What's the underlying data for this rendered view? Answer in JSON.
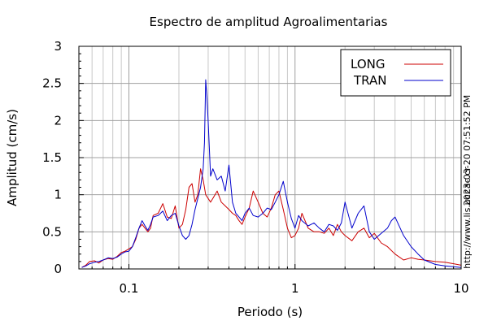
{
  "chart_data": {
    "type": "line",
    "title": "Espectro de amplitud Agroalimentarias",
    "xlabel": "Periodo (s)",
    "ylabel": "Amplitud (cm/s)",
    "x_scale": "log",
    "xlim": [
      0.05,
      10
    ],
    "ylim": [
      0,
      3
    ],
    "grid": true,
    "legend_position": "top-right",
    "x_ticks": [
      {
        "value": 0.1,
        "label": "0.1"
      },
      {
        "value": 1,
        "label": "1"
      },
      {
        "value": 10,
        "label": "10"
      }
    ],
    "y_ticks": [
      {
        "value": 0,
        "label": "0"
      },
      {
        "value": 0.5,
        "label": "0.5"
      },
      {
        "value": 1,
        "label": "1"
      },
      {
        "value": 1.5,
        "label": "1.5"
      },
      {
        "value": 2,
        "label": "2"
      },
      {
        "value": 2.5,
        "label": "2.5"
      },
      {
        "value": 3,
        "label": "3"
      }
    ],
    "series": [
      {
        "name": "LONG",
        "color": "#cc0000",
        "x": [
          0.052,
          0.055,
          0.058,
          0.062,
          0.066,
          0.07,
          0.075,
          0.08,
          0.085,
          0.09,
          0.095,
          0.1,
          0.105,
          0.11,
          0.115,
          0.12,
          0.125,
          0.13,
          0.135,
          0.14,
          0.15,
          0.16,
          0.17,
          0.18,
          0.19,
          0.2,
          0.21,
          0.22,
          0.23,
          0.24,
          0.25,
          0.26,
          0.27,
          0.28,
          0.29,
          0.3,
          0.31,
          0.32,
          0.34,
          0.36,
          0.38,
          0.4,
          0.42,
          0.44,
          0.46,
          0.48,
          0.5,
          0.53,
          0.56,
          0.6,
          0.64,
          0.68,
          0.72,
          0.76,
          0.8,
          0.85,
          0.9,
          0.95,
          1.0,
          1.05,
          1.1,
          1.2,
          1.3,
          1.4,
          1.5,
          1.6,
          1.7,
          1.8,
          1.9,
          2.0,
          2.2,
          2.4,
          2.6,
          2.8,
          3.0,
          3.3,
          3.6,
          4.0,
          4.5,
          5.0,
          5.5,
          6.0,
          7.0,
          8.0,
          9.0,
          10.0
        ],
        "values": [
          0.02,
          0.05,
          0.1,
          0.11,
          0.08,
          0.12,
          0.14,
          0.13,
          0.17,
          0.22,
          0.24,
          0.27,
          0.3,
          0.4,
          0.55,
          0.6,
          0.55,
          0.5,
          0.55,
          0.72,
          0.75,
          0.88,
          0.7,
          0.68,
          0.85,
          0.55,
          0.6,
          0.8,
          1.1,
          1.15,
          0.9,
          1.0,
          1.35,
          1.2,
          1.0,
          0.95,
          0.9,
          0.95,
          1.05,
          0.9,
          0.85,
          0.8,
          0.75,
          0.72,
          0.65,
          0.6,
          0.7,
          0.82,
          1.05,
          0.9,
          0.75,
          0.7,
          0.82,
          1.0,
          1.05,
          0.8,
          0.55,
          0.42,
          0.45,
          0.55,
          0.75,
          0.55,
          0.5,
          0.5,
          0.48,
          0.55,
          0.45,
          0.6,
          0.5,
          0.45,
          0.38,
          0.5,
          0.55,
          0.42,
          0.48,
          0.35,
          0.3,
          0.2,
          0.12,
          0.15,
          0.13,
          0.12,
          0.1,
          0.09,
          0.07,
          0.05
        ]
      },
      {
        "name": "TRAN",
        "color": "#0000cc",
        "x": [
          0.052,
          0.055,
          0.058,
          0.062,
          0.066,
          0.07,
          0.075,
          0.08,
          0.085,
          0.09,
          0.095,
          0.1,
          0.105,
          0.11,
          0.115,
          0.12,
          0.125,
          0.13,
          0.135,
          0.14,
          0.15,
          0.16,
          0.17,
          0.18,
          0.19,
          0.2,
          0.21,
          0.22,
          0.23,
          0.24,
          0.25,
          0.26,
          0.27,
          0.28,
          0.285,
          0.29,
          0.295,
          0.3,
          0.31,
          0.32,
          0.34,
          0.36,
          0.38,
          0.4,
          0.42,
          0.44,
          0.46,
          0.48,
          0.5,
          0.53,
          0.56,
          0.6,
          0.64,
          0.68,
          0.72,
          0.76,
          0.8,
          0.85,
          0.9,
          0.95,
          1.0,
          1.05,
          1.1,
          1.2,
          1.3,
          1.4,
          1.5,
          1.6,
          1.7,
          1.8,
          1.9,
          2.0,
          2.2,
          2.4,
          2.6,
          2.8,
          3.0,
          3.3,
          3.6,
          3.8,
          4.0,
          4.5,
          5.0,
          5.5,
          6.0,
          7.0,
          8.0,
          9.0,
          10.0
        ],
        "values": [
          0.02,
          0.04,
          0.07,
          0.09,
          0.1,
          0.12,
          0.15,
          0.14,
          0.16,
          0.2,
          0.23,
          0.24,
          0.3,
          0.42,
          0.55,
          0.65,
          0.58,
          0.52,
          0.6,
          0.7,
          0.72,
          0.78,
          0.65,
          0.72,
          0.75,
          0.58,
          0.45,
          0.4,
          0.45,
          0.6,
          0.8,
          0.95,
          1.1,
          1.35,
          1.7,
          2.55,
          2.3,
          2.0,
          1.25,
          1.35,
          1.2,
          1.25,
          1.05,
          1.4,
          0.9,
          0.75,
          0.7,
          0.65,
          0.75,
          0.82,
          0.72,
          0.7,
          0.75,
          0.82,
          0.8,
          0.9,
          1.0,
          1.18,
          0.9,
          0.68,
          0.55,
          0.72,
          0.65,
          0.58,
          0.62,
          0.55,
          0.5,
          0.6,
          0.58,
          0.52,
          0.62,
          0.9,
          0.55,
          0.75,
          0.85,
          0.5,
          0.4,
          0.48,
          0.55,
          0.65,
          0.7,
          0.45,
          0.3,
          0.2,
          0.12,
          0.06,
          0.04,
          0.03,
          0.02
        ]
      }
    ]
  },
  "side_text": {
    "timestamp": "2023-03-20 07:51:52 PM",
    "url": "http://www.lis.ucr.ac.cr"
  }
}
